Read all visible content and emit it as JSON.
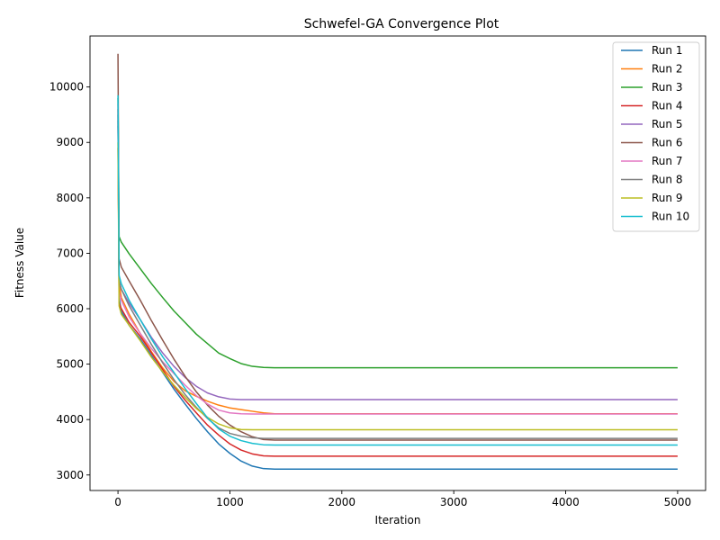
{
  "chart_data": {
    "type": "line",
    "title": "Schwefel-GA Convergence Plot",
    "xlabel": "Iteration",
    "ylabel": "Fitness Value",
    "xlim": [
      -250,
      5250
    ],
    "ylim": [
      2720,
      10920
    ],
    "xticks": [
      0,
      1000,
      2000,
      3000,
      4000,
      5000
    ],
    "yticks": [
      3000,
      4000,
      5000,
      6000,
      7000,
      8000,
      9000,
      10000
    ],
    "grid": false,
    "legend_position": "top-right",
    "series": [
      {
        "name": "Run 1",
        "color": "#1f77b4",
        "x": [
          0,
          10,
          30,
          100,
          200,
          300,
          400,
          500,
          600,
          700,
          800,
          900,
          1000,
          1100,
          1200,
          1300,
          1400,
          5000
        ],
        "values": [
          9500,
          6200,
          5950,
          5700,
          5450,
          5150,
          4850,
          4550,
          4280,
          4020,
          3780,
          3560,
          3390,
          3250,
          3160,
          3115,
          3105,
          3105
        ]
      },
      {
        "name": "Run 2",
        "color": "#ff7f0e",
        "x": [
          0,
          10,
          30,
          100,
          200,
          300,
          400,
          500,
          600,
          700,
          800,
          900,
          1000,
          1100,
          1200,
          1300,
          1400,
          5000
        ],
        "values": [
          8900,
          6450,
          6200,
          5900,
          5550,
          5220,
          4930,
          4690,
          4520,
          4420,
          4330,
          4260,
          4210,
          4180,
          4150,
          4120,
          4105,
          4105
        ]
      },
      {
        "name": "Run 3",
        "color": "#2ca02c",
        "x": [
          0,
          10,
          30,
          100,
          200,
          300,
          400,
          500,
          600,
          700,
          800,
          900,
          1000,
          1100,
          1200,
          1300,
          1400,
          5000
        ],
        "values": [
          9800,
          7300,
          7200,
          6990,
          6720,
          6450,
          6200,
          5960,
          5750,
          5540,
          5370,
          5200,
          5100,
          5010,
          4960,
          4940,
          4935,
          4935
        ]
      },
      {
        "name": "Run 4",
        "color": "#d62728",
        "x": [
          0,
          10,
          30,
          100,
          200,
          300,
          400,
          500,
          600,
          700,
          800,
          900,
          1000,
          1100,
          1200,
          1300,
          1400,
          5000
        ],
        "values": [
          9600,
          6100,
          6000,
          5750,
          5500,
          5200,
          4900,
          4600,
          4350,
          4120,
          3900,
          3720,
          3560,
          3450,
          3380,
          3345,
          3340,
          3340
        ]
      },
      {
        "name": "Run 5",
        "color": "#9467bd",
        "x": [
          0,
          10,
          30,
          100,
          200,
          300,
          400,
          500,
          600,
          700,
          800,
          900,
          1000,
          1100,
          1200,
          1300,
          1400,
          5000
        ],
        "values": [
          9300,
          6500,
          6350,
          6100,
          5800,
          5480,
          5200,
          4960,
          4760,
          4600,
          4480,
          4410,
          4370,
          4360,
          4360,
          4360,
          4360,
          4360
        ]
      },
      {
        "name": "Run 6",
        "color": "#8c564b",
        "x": [
          0,
          10,
          30,
          100,
          200,
          300,
          400,
          500,
          600,
          700,
          800,
          900,
          1000,
          1100,
          1200,
          1300,
          1400,
          5000
        ],
        "values": [
          10600,
          6900,
          6750,
          6500,
          6150,
          5780,
          5430,
          5090,
          4780,
          4500,
          4260,
          4060,
          3900,
          3780,
          3690,
          3640,
          3630,
          3630
        ]
      },
      {
        "name": "Run 7",
        "color": "#e377c2",
        "x": [
          0,
          10,
          30,
          100,
          200,
          300,
          400,
          500,
          600,
          700,
          800,
          900,
          1000,
          1100,
          1200,
          1300,
          1400,
          5000
        ],
        "values": [
          9700,
          6300,
          6150,
          5850,
          5550,
          5280,
          5040,
          4830,
          4620,
          4430,
          4280,
          4170,
          4120,
          4105,
          4100,
          4100,
          4100,
          4100
        ]
      },
      {
        "name": "Run 8",
        "color": "#7f7f7f",
        "x": [
          0,
          10,
          30,
          100,
          200,
          300,
          400,
          500,
          600,
          700,
          800,
          900,
          1000,
          1100,
          1200,
          1300,
          1400,
          5000
        ],
        "values": [
          9400,
          6500,
          6350,
          6050,
          5700,
          5350,
          5020,
          4720,
          4450,
          4220,
          4020,
          3850,
          3750,
          3700,
          3670,
          3660,
          3660,
          3660
        ]
      },
      {
        "name": "Run 9",
        "color": "#bcbd22",
        "x": [
          0,
          10,
          30,
          100,
          200,
          300,
          400,
          500,
          600,
          700,
          800,
          900,
          1000,
          1100,
          1200,
          1300,
          1400,
          5000
        ],
        "values": [
          9000,
          6050,
          5900,
          5700,
          5420,
          5120,
          4860,
          4620,
          4400,
          4200,
          4040,
          3920,
          3850,
          3820,
          3815,
          3815,
          3815,
          3815
        ]
      },
      {
        "name": "Run 10",
        "color": "#17becf",
        "x": [
          0,
          10,
          30,
          100,
          200,
          300,
          400,
          500,
          600,
          700,
          800,
          900,
          1000,
          1100,
          1200,
          1300,
          1400,
          5000
        ],
        "values": [
          9850,
          6600,
          6450,
          6150,
          5800,
          5450,
          5130,
          4850,
          4560,
          4290,
          4030,
          3830,
          3700,
          3620,
          3570,
          3545,
          3540,
          3540
        ]
      }
    ]
  }
}
